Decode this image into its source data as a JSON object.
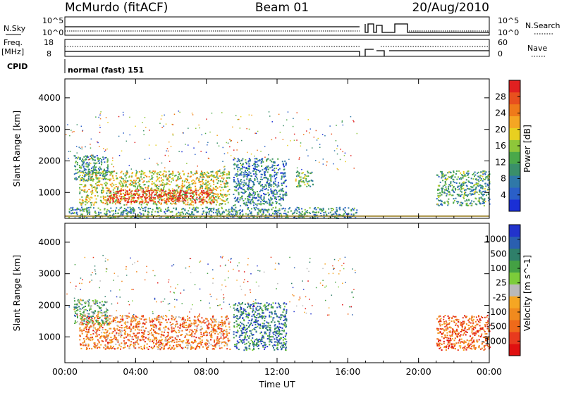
{
  "header": {
    "station": "McMurdo (fitACF)",
    "beam": "Beam 01",
    "date": "20/Aug/2010"
  },
  "status_panels": {
    "nsky_label": "N.Sky",
    "nsky_ticks": [
      "10^5",
      "10^0"
    ],
    "nsearch_label": "N.Search",
    "nsearch_ticks": [
      "10^5",
      "10^0"
    ],
    "freq_label": "Freq.",
    "freq_unit": "[MHz]",
    "freq_ticks": [
      "18",
      "8"
    ],
    "nave_label": "Nave",
    "nave_ticks": [
      "60",
      "0"
    ],
    "cpid_label": "CPID",
    "cpid_text": "normal (fast) 151"
  },
  "chart_data": [
    {
      "type": "heatmap",
      "parameter": "Power",
      "xlabel": "Time UT",
      "ylabel": "Slant Range [km]",
      "xticks": [
        "00:00",
        "04:00",
        "08:00",
        "12:00",
        "16:00",
        "20:00",
        "00:00"
      ],
      "xlim_hours": [
        0,
        24
      ],
      "ylim": [
        180,
        4600
      ],
      "yticks": [
        1000,
        2000,
        3000,
        4000
      ],
      "colorbar": {
        "label": "Power [dB]",
        "ticks": [
          "4",
          "8",
          "12",
          "16",
          "20",
          "24",
          "28"
        ],
        "colors": [
          "#1a2fd6",
          "#2a5fc8",
          "#2f78a8",
          "#3a8f6a",
          "#4aa84a",
          "#8ec63a",
          "#e8d020",
          "#f5a623",
          "#ef7a1a",
          "#e8501e",
          "#e02020"
        ]
      },
      "regions": [
        {
          "t0": 0.8,
          "t1": 9.3,
          "r0": 620,
          "r1": 1700,
          "level": 0.55
        },
        {
          "t0": 2.4,
          "t1": 8.4,
          "r0": 700,
          "r1": 1100,
          "level": 0.95
        },
        {
          "t0": 0.5,
          "t1": 2.4,
          "r0": 1400,
          "r1": 2200,
          "level": 0.3
        },
        {
          "t0": 9.5,
          "t1": 12.5,
          "r0": 600,
          "r1": 2100,
          "level": 0.25
        },
        {
          "t0": 13.0,
          "t1": 14.0,
          "r0": 1200,
          "r1": 1700,
          "level": 0.45
        },
        {
          "t0": 21.0,
          "t1": 24.0,
          "r0": 600,
          "r1": 1700,
          "level": 0.35
        },
        {
          "t0": 0.2,
          "t1": 16.5,
          "r0": 200,
          "r1": 550,
          "level": 0.3
        }
      ]
    },
    {
      "type": "heatmap",
      "parameter": "Velocity",
      "xlabel": "Time UT",
      "ylabel": "Slant Range [km]",
      "xticks": [
        "00:00",
        "04:00",
        "08:00",
        "12:00",
        "16:00",
        "20:00",
        "00:00"
      ],
      "xlim_hours": [
        0,
        24
      ],
      "ylim": [
        180,
        4600
      ],
      "yticks": [
        1000,
        2000,
        3000,
        4000
      ],
      "colorbar": {
        "label": "Velocity [m s^-1]",
        "ticks": [
          "1000",
          "500",
          "100",
          "25",
          "-25",
          "-100",
          "-500",
          "-1000"
        ],
        "colors": [
          "#2233cc",
          "#2a5fb0",
          "#2f7f6a",
          "#44a144",
          "#7ccc3a",
          "#b9b9b9",
          "#f5a623",
          "#f08a1e",
          "#ef6a1a",
          "#e83a1e",
          "#e01010"
        ]
      },
      "regions": [
        {
          "t0": 0.8,
          "t1": 9.3,
          "r0": 620,
          "r1": 1700,
          "level": 0.72
        },
        {
          "t0": 0.5,
          "t1": 2.4,
          "r0": 1400,
          "r1": 2200,
          "level": 0.35
        },
        {
          "t0": 9.5,
          "t1": 12.5,
          "r0": 600,
          "r1": 2100,
          "level": 0.2
        },
        {
          "t0": 21.0,
          "t1": 24.0,
          "r0": 600,
          "r1": 1700,
          "level": 0.8
        }
      ]
    }
  ]
}
